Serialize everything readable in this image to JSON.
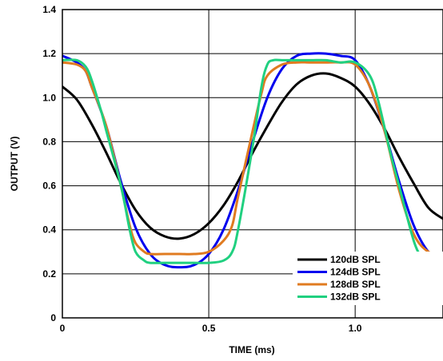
{
  "chart_data": {
    "type": "line",
    "xlabel": "TIME (ms)",
    "ylabel": "OUTPUT (V)",
    "xlim": [
      0,
      1.3
    ],
    "ylim": [
      0,
      1.4
    ],
    "x_ticks": [
      {
        "value": 0,
        "label": "0"
      },
      {
        "value": 0.5,
        "label": "0.5"
      },
      {
        "value": 1.0,
        "label": "1.0"
      }
    ],
    "y_ticks": [
      {
        "value": 0,
        "label": "0"
      },
      {
        "value": 0.2,
        "label": "0.2"
      },
      {
        "value": 0.4,
        "label": "0.4"
      },
      {
        "value": 0.6,
        "label": "0.6"
      },
      {
        "value": 0.8,
        "label": "0.8"
      },
      {
        "value": 1.0,
        "label": "1.0"
      },
      {
        "value": 1.2,
        "label": "1.2"
      },
      {
        "value": 1.4,
        "label": "1.4"
      }
    ],
    "grid": true,
    "legend_position": "bottom-right",
    "series": [
      {
        "name": "120dB SPL",
        "color": "#000000",
        "points": [
          [
            0,
            1.05
          ],
          [
            0.05,
            0.99
          ],
          [
            0.1,
            0.88
          ],
          [
            0.15,
            0.75
          ],
          [
            0.2,
            0.61
          ],
          [
            0.25,
            0.49
          ],
          [
            0.3,
            0.41
          ],
          [
            0.35,
            0.37
          ],
          [
            0.4,
            0.36
          ],
          [
            0.45,
            0.38
          ],
          [
            0.5,
            0.43
          ],
          [
            0.55,
            0.51
          ],
          [
            0.6,
            0.62
          ],
          [
            0.65,
            0.75
          ],
          [
            0.7,
            0.87
          ],
          [
            0.75,
            0.98
          ],
          [
            0.8,
            1.06
          ],
          [
            0.85,
            1.1
          ],
          [
            0.9,
            1.11
          ],
          [
            0.95,
            1.09
          ],
          [
            1.0,
            1.05
          ],
          [
            1.05,
            0.97
          ],
          [
            1.1,
            0.86
          ],
          [
            1.15,
            0.73
          ],
          [
            1.2,
            0.61
          ],
          [
            1.25,
            0.5
          ],
          [
            1.3,
            0.45
          ]
        ]
      },
      {
        "name": "124dB SPL",
        "color": "#0000ee",
        "points": [
          [
            0,
            1.19
          ],
          [
            0.05,
            1.16
          ],
          [
            0.08,
            1.12
          ],
          [
            0.1,
            1.05
          ],
          [
            0.15,
            0.87
          ],
          [
            0.2,
            0.62
          ],
          [
            0.25,
            0.41
          ],
          [
            0.3,
            0.29
          ],
          [
            0.35,
            0.24
          ],
          [
            0.4,
            0.23
          ],
          [
            0.45,
            0.24
          ],
          [
            0.5,
            0.29
          ],
          [
            0.55,
            0.4
          ],
          [
            0.6,
            0.58
          ],
          [
            0.65,
            0.8
          ],
          [
            0.7,
            1.0
          ],
          [
            0.75,
            1.13
          ],
          [
            0.8,
            1.19
          ],
          [
            0.85,
            1.2
          ],
          [
            0.9,
            1.2
          ],
          [
            0.95,
            1.19
          ],
          [
            1.0,
            1.17
          ],
          [
            1.05,
            1.05
          ],
          [
            1.1,
            0.85
          ],
          [
            1.15,
            0.62
          ],
          [
            1.2,
            0.42
          ],
          [
            1.25,
            0.3
          ],
          [
            1.3,
            0.26
          ]
        ]
      },
      {
        "name": "128dB SPL",
        "color": "#e07b20",
        "points": [
          [
            0,
            1.16
          ],
          [
            0.05,
            1.15
          ],
          [
            0.08,
            1.12
          ],
          [
            0.1,
            1.05
          ],
          [
            0.15,
            0.87
          ],
          [
            0.2,
            0.6
          ],
          [
            0.23,
            0.42
          ],
          [
            0.25,
            0.34
          ],
          [
            0.28,
            0.3
          ],
          [
            0.3,
            0.29
          ],
          [
            0.35,
            0.29
          ],
          [
            0.4,
            0.29
          ],
          [
            0.45,
            0.29
          ],
          [
            0.5,
            0.3
          ],
          [
            0.55,
            0.35
          ],
          [
            0.58,
            0.42
          ],
          [
            0.6,
            0.55
          ],
          [
            0.65,
            0.85
          ],
          [
            0.68,
            1.02
          ],
          [
            0.7,
            1.1
          ],
          [
            0.75,
            1.15
          ],
          [
            0.8,
            1.16
          ],
          [
            0.85,
            1.16
          ],
          [
            0.9,
            1.16
          ],
          [
            0.95,
            1.16
          ],
          [
            1.0,
            1.15
          ],
          [
            1.05,
            1.05
          ],
          [
            1.1,
            0.85
          ],
          [
            1.15,
            0.58
          ],
          [
            1.2,
            0.38
          ],
          [
            1.25,
            0.3
          ],
          [
            1.3,
            0.29
          ]
        ]
      },
      {
        "name": "132dB SPL",
        "color": "#20d080",
        "points": [
          [
            0,
            1.17
          ],
          [
            0.05,
            1.17
          ],
          [
            0.08,
            1.14
          ],
          [
            0.1,
            1.08
          ],
          [
            0.13,
            0.95
          ],
          [
            0.15,
            0.85
          ],
          [
            0.2,
            0.6
          ],
          [
            0.23,
            0.4
          ],
          [
            0.25,
            0.3
          ],
          [
            0.28,
            0.26
          ],
          [
            0.3,
            0.25
          ],
          [
            0.35,
            0.25
          ],
          [
            0.4,
            0.25
          ],
          [
            0.45,
            0.25
          ],
          [
            0.5,
            0.25
          ],
          [
            0.55,
            0.26
          ],
          [
            0.58,
            0.3
          ],
          [
            0.6,
            0.4
          ],
          [
            0.65,
            0.78
          ],
          [
            0.68,
            1.05
          ],
          [
            0.7,
            1.15
          ],
          [
            0.72,
            1.17
          ],
          [
            0.75,
            1.17
          ],
          [
            0.8,
            1.17
          ],
          [
            0.85,
            1.17
          ],
          [
            0.9,
            1.17
          ],
          [
            0.95,
            1.16
          ],
          [
            1.0,
            1.16
          ],
          [
            1.05,
            1.1
          ],
          [
            1.08,
            0.98
          ],
          [
            1.12,
            0.75
          ],
          [
            1.15,
            0.6
          ],
          [
            1.2,
            0.35
          ],
          [
            1.23,
            0.27
          ],
          [
            1.25,
            0.25
          ],
          [
            1.3,
            0.25
          ]
        ]
      }
    ]
  }
}
